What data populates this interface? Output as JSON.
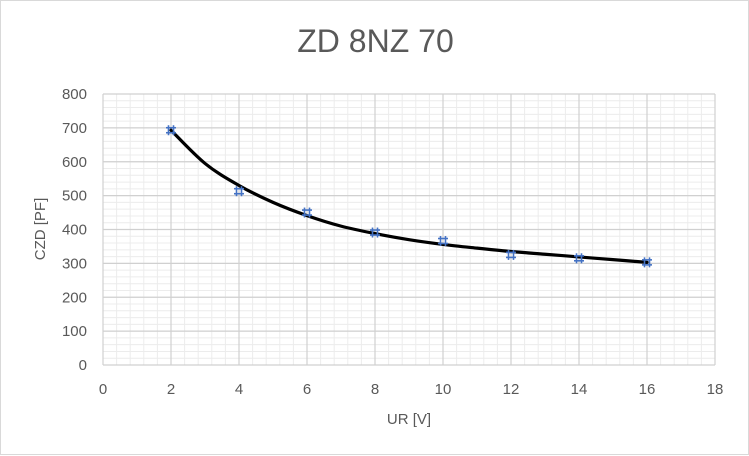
{
  "chart_data": {
    "type": "scatter",
    "title": "ZD 8NZ 70",
    "xlabel": "UR [V]",
    "ylabel": "CZD [PF]",
    "xlim": [
      0,
      18
    ],
    "ylim": [
      0,
      800
    ],
    "x_ticks": [
      0,
      2,
      4,
      6,
      8,
      10,
      12,
      14,
      16,
      18
    ],
    "y_ticks": [
      0,
      100,
      200,
      300,
      400,
      500,
      600,
      700,
      800
    ],
    "grid": true,
    "legend": "none",
    "series": [
      {
        "marker": "plus",
        "color": "#4472c4",
        "x": [
          2,
          4,
          6,
          8,
          10,
          12,
          14,
          16
        ],
        "y": [
          693,
          513,
          450,
          391,
          366,
          325,
          315,
          303
        ]
      }
    ],
    "trendline": {
      "color": "#000000",
      "x": [
        2,
        3,
        4,
        5,
        6,
        7,
        8,
        9,
        10,
        11,
        12,
        13,
        14,
        15,
        16
      ],
      "y": [
        693,
        595,
        530,
        480,
        441,
        410,
        388,
        370,
        356,
        345,
        335,
        327,
        319,
        311,
        303
      ]
    }
  }
}
